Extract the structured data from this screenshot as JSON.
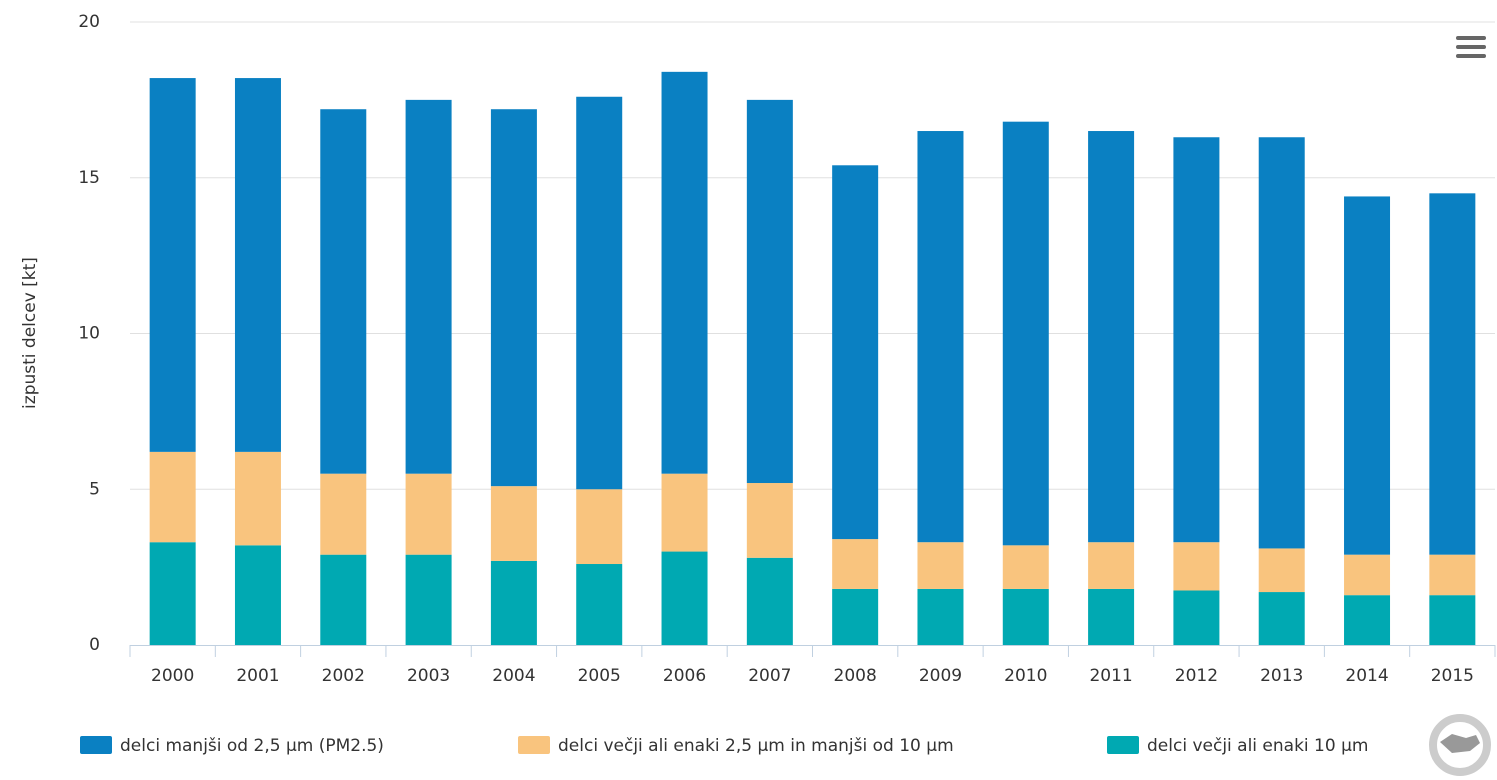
{
  "chart_data": {
    "type": "stacked_bar",
    "y_label": "izpusti delcev [kt]",
    "categories": [
      "2000",
      "2001",
      "2002",
      "2003",
      "2004",
      "2005",
      "2006",
      "2007",
      "2008",
      "2009",
      "2010",
      "2011",
      "2012",
      "2013",
      "2014",
      "2015"
    ],
    "series": [
      {
        "name": "delci manjši od 2,5 µm (PM2.5)",
        "color": "#0a80c2",
        "values": [
          12.0,
          12.0,
          11.7,
          12.0,
          12.1,
          12.6,
          12.9,
          12.3,
          12.0,
          13.2,
          13.6,
          13.2,
          13.0,
          13.2,
          11.5,
          11.6
        ]
      },
      {
        "name": "delci večji ali enaki 2,5 µm in manjši od 10 µm",
        "color": "#f9c47e",
        "values": [
          2.9,
          3.0,
          2.6,
          2.6,
          2.4,
          2.4,
          2.5,
          2.4,
          1.6,
          1.5,
          1.4,
          1.5,
          1.55,
          1.4,
          1.3,
          1.3
        ]
      },
      {
        "name": "delci večji ali enaki 10 µm",
        "color": "#00a9b2",
        "values": [
          3.3,
          3.2,
          2.9,
          2.9,
          2.7,
          2.6,
          3.0,
          2.8,
          1.8,
          1.8,
          1.8,
          1.8,
          1.75,
          1.7,
          1.6,
          1.6
        ]
      }
    ],
    "stack_order": "bottom_last",
    "ylim": [
      0,
      20
    ],
    "yticks": [
      0,
      5,
      10,
      15,
      20
    ],
    "grid": true
  }
}
